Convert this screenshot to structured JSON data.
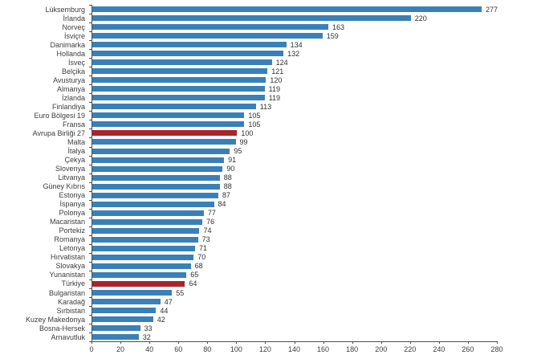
{
  "chart_data": {
    "type": "bar",
    "orientation": "horizontal",
    "title": "",
    "xlabel": "",
    "ylabel": "",
    "xlim": [
      0,
      280
    ],
    "xticks": [
      0,
      20,
      40,
      60,
      80,
      100,
      120,
      140,
      160,
      180,
      200,
      220,
      240,
      260,
      280
    ],
    "grid": false,
    "legend": false,
    "value_labels_shown": true,
    "categories": [
      "Lüksemburg",
      "İrlanda",
      "Norveç",
      "İsviçre",
      "Danimarka",
      "Hollanda",
      "İsveç",
      "Belçika",
      "Avusturya",
      "Almanya",
      "İzlanda",
      "Finlandiya",
      "Euro Bölgesi 19",
      "Fransa",
      "Avrupa Birliği 27",
      "Malta",
      "İtalya",
      "Çekya",
      "Slovenya",
      "Litvanya",
      "Güney Kıbrıs",
      "Estonya",
      "İspanya",
      "Polonya",
      "Macaristan",
      "Portekiz",
      "Romanya",
      "Letonya",
      "Hırvatistan",
      "Slovakya",
      "Yunanistan",
      "Türkiye",
      "Bulgaristan",
      "Karadağ",
      "Sırbistan",
      "Kuzey Makedonya",
      "Bosna-Hersek",
      "Arnavutluk"
    ],
    "values": [
      277,
      220,
      163,
      159,
      134,
      132,
      124,
      121,
      120,
      119,
      119,
      113,
      105,
      105,
      100,
      99,
      95,
      91,
      90,
      88,
      88,
      87,
      84,
      77,
      76,
      74,
      73,
      71,
      70,
      68,
      65,
      64,
      55,
      47,
      44,
      42,
      33,
      32
    ],
    "highlighted_categories": [
      "Avrupa Birliği 27",
      "Türkiye"
    ],
    "colors": {
      "bar": "#3a80b8",
      "highlight_bar": "#a8242a",
      "text": "#3d3d3d",
      "axis": "#4d4d4d",
      "background": "#ffffff"
    }
  }
}
